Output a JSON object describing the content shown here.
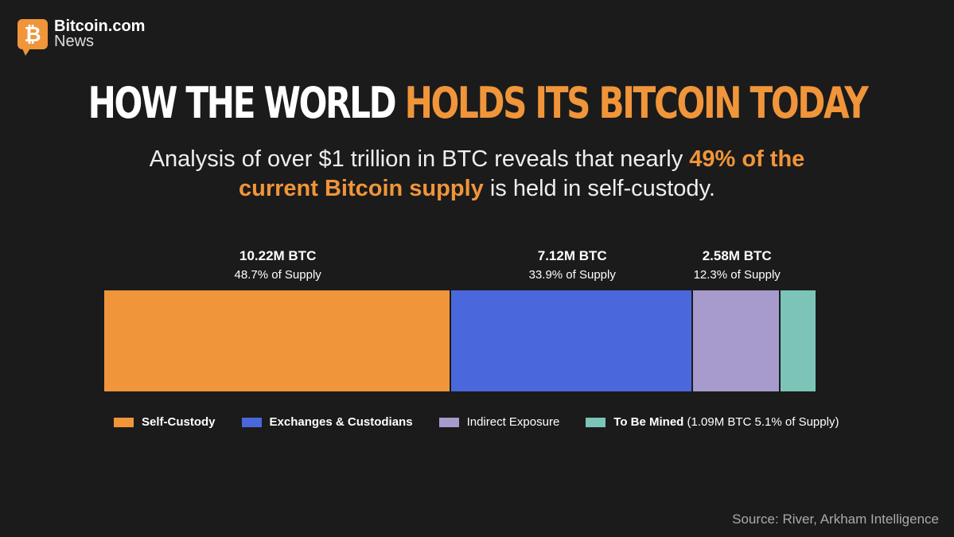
{
  "brand": {
    "name": "Bitcoin.com",
    "sub": "News",
    "icon": "bitcoin-icon"
  },
  "title": {
    "part1": "HOW THE WORLD ",
    "part2": "HOLDS ITS BITCOIN TODAY"
  },
  "subtitle": {
    "part1": "Analysis of over $1 trillion in BTC reveals that nearly ",
    "highlight": "49% of the current Bitcoin supply",
    "part2": " is held in self-custody."
  },
  "chart_data": {
    "type": "bar",
    "orientation": "stacked-horizontal",
    "title": "HOW THE WORLD HOLDS ITS BITCOIN TODAY",
    "categories": [
      "Self-Custody",
      "Exchanges & Custodians",
      "Indirect Exposure",
      "To Be Mined"
    ],
    "values_pct": [
      48.7,
      33.9,
      12.3,
      5.1
    ],
    "values_btc_m": [
      10.22,
      7.12,
      2.58,
      1.09
    ],
    "value_labels": [
      "10.22M BTC",
      "7.12M BTC",
      "2.58M BTC",
      ""
    ],
    "pct_labels": [
      "48.7% of Supply",
      "33.9% of Supply",
      "12.3% of Supply",
      ""
    ],
    "colors": [
      "#f0953a",
      "#4a68db",
      "#a69bcc",
      "#7bc4b7"
    ],
    "legend_note": "(1.09M BTC 5.1% of Supply)",
    "legend_position": "bottom"
  },
  "source": "Source: River, Arkham Intelligence"
}
